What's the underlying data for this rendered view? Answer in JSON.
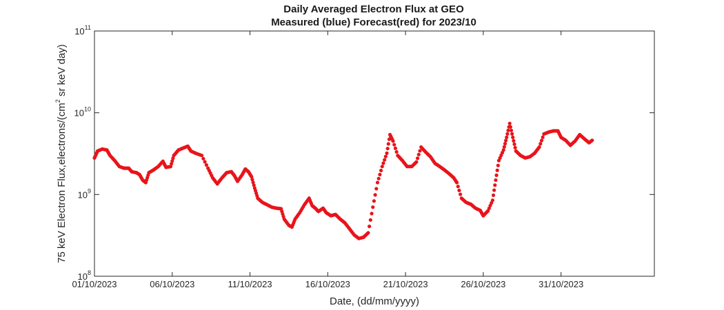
{
  "chart_data": {
    "type": "scatter",
    "title": "Daily Averaged Electron Flux at GEO",
    "subtitle": "Measured (blue) Forecast(red) for 2023/10",
    "xlabel": "Date, (dd/mm/yyyy)",
    "ylabel": "75 keV Electron Flux,electrons/(cm",
    "ylabel_exp": "2",
    "ylabel_tail": " sr keV day)",
    "x_unit": "days (1 = 01/10/2023)",
    "xlim": [
      1,
      37
    ],
    "ylim": [
      100000000,
      100000000000
    ],
    "y_scale": "log",
    "grid": false,
    "x_ticks": [
      {
        "value": 1,
        "label": "01/10/2023"
      },
      {
        "value": 6,
        "label": "06/10/2023"
      },
      {
        "value": 11,
        "label": "11/10/2023"
      },
      {
        "value": 16,
        "label": "16/10/2023"
      },
      {
        "value": 21,
        "label": "21/10/2023"
      },
      {
        "value": 26,
        "label": "26/10/2023"
      },
      {
        "value": 31,
        "label": "31/10/2023"
      }
    ],
    "y_ticks": [
      {
        "value": 100000000,
        "base": "10",
        "exp": "8"
      },
      {
        "value": 1000000000,
        "base": "10",
        "exp": "9"
      },
      {
        "value": 10000000000,
        "base": "10",
        "exp": "10"
      },
      {
        "value": 100000000000,
        "base": "10",
        "exp": "11"
      }
    ],
    "series": [
      {
        "color": "#e8141a",
        "marker": "dot",
        "points": [
          [
            1.0,
            2800000000.0
          ],
          [
            1.2,
            3400000000.0
          ],
          [
            1.5,
            3600000000.0
          ],
          [
            1.8,
            3500000000.0
          ],
          [
            2.0,
            3000000000.0
          ],
          [
            2.3,
            2600000000.0
          ],
          [
            2.6,
            2200000000.0
          ],
          [
            2.9,
            2100000000.0
          ],
          [
            3.2,
            2100000000.0
          ],
          [
            3.4,
            1900000000.0
          ],
          [
            3.7,
            1850000000.0
          ],
          [
            3.9,
            1750000000.0
          ],
          [
            4.1,
            1500000000.0
          ],
          [
            4.3,
            1400000000.0
          ],
          [
            4.5,
            1850000000.0
          ],
          [
            4.8,
            2000000000.0
          ],
          [
            5.1,
            2200000000.0
          ],
          [
            5.4,
            2550000000.0
          ],
          [
            5.6,
            2150000000.0
          ],
          [
            5.9,
            2200000000.0
          ],
          [
            6.1,
            3000000000.0
          ],
          [
            6.4,
            3500000000.0
          ],
          [
            6.7,
            3700000000.0
          ],
          [
            7.0,
            3900000000.0
          ],
          [
            7.2,
            3400000000.0
          ],
          [
            7.5,
            3200000000.0
          ],
          [
            7.9,
            3000000000.0
          ],
          [
            8.3,
            2100000000.0
          ],
          [
            8.6,
            1600000000.0
          ],
          [
            8.9,
            1350000000.0
          ],
          [
            9.2,
            1600000000.0
          ],
          [
            9.5,
            1850000000.0
          ],
          [
            9.8,
            1900000000.0
          ],
          [
            10.0,
            1700000000.0
          ],
          [
            10.2,
            1450000000.0
          ],
          [
            10.5,
            1750000000.0
          ],
          [
            10.7,
            2050000000.0
          ],
          [
            10.9,
            1900000000.0
          ],
          [
            11.1,
            1650000000.0
          ],
          [
            11.3,
            1200000000.0
          ],
          [
            11.5,
            900000000.0
          ],
          [
            11.8,
            800000000.0
          ],
          [
            12.1,
            750000000.0
          ],
          [
            12.4,
            700000000.0
          ],
          [
            12.7,
            680000000.0
          ],
          [
            13.0,
            670000000.0
          ],
          [
            13.2,
            500000000.0
          ],
          [
            13.5,
            420000000.0
          ],
          [
            13.7,
            400000000.0
          ],
          [
            13.9,
            500000000.0
          ],
          [
            14.2,
            600000000.0
          ],
          [
            14.5,
            750000000.0
          ],
          [
            14.8,
            900000000.0
          ],
          [
            15.0,
            730000000.0
          ],
          [
            15.2,
            680000000.0
          ],
          [
            15.4,
            620000000.0
          ],
          [
            15.7,
            680000000.0
          ],
          [
            15.9,
            600000000.0
          ],
          [
            16.2,
            550000000.0
          ],
          [
            16.5,
            570000000.0
          ],
          [
            16.8,
            500000000.0
          ],
          [
            17.1,
            450000000.0
          ],
          [
            17.4,
            380000000.0
          ],
          [
            17.7,
            320000000.0
          ],
          [
            18.0,
            290000000.0
          ],
          [
            18.3,
            300000000.0
          ],
          [
            18.6,
            340000000.0
          ],
          [
            18.9,
            700000000.0
          ],
          [
            19.2,
            1400000000.0
          ],
          [
            19.5,
            2200000000.0
          ],
          [
            19.8,
            3200000000.0
          ],
          [
            20.0,
            5400000000.0
          ],
          [
            20.2,
            4500000000.0
          ],
          [
            20.5,
            3000000000.0
          ],
          [
            20.8,
            2600000000.0
          ],
          [
            21.1,
            2200000000.0
          ],
          [
            21.4,
            2200000000.0
          ],
          [
            21.7,
            2500000000.0
          ],
          [
            22.0,
            3800000000.0
          ],
          [
            22.3,
            3300000000.0
          ],
          [
            22.6,
            2900000000.0
          ],
          [
            22.9,
            2400000000.0
          ],
          [
            23.2,
            2200000000.0
          ],
          [
            23.5,
            2000000000.0
          ],
          [
            23.8,
            1800000000.0
          ],
          [
            24.1,
            1600000000.0
          ],
          [
            24.3,
            1400000000.0
          ],
          [
            24.6,
            900000000.0
          ],
          [
            24.9,
            800000000.0
          ],
          [
            25.2,
            760000000.0
          ],
          [
            25.5,
            680000000.0
          ],
          [
            25.8,
            640000000.0
          ],
          [
            26.0,
            550000000.0
          ],
          [
            26.3,
            630000000.0
          ],
          [
            26.6,
            850000000.0
          ],
          [
            26.8,
            1500000000.0
          ],
          [
            27.0,
            2600000000.0
          ],
          [
            27.3,
            3500000000.0
          ],
          [
            27.5,
            5000000000.0
          ],
          [
            27.7,
            7400000000.0
          ],
          [
            27.9,
            5000000000.0
          ],
          [
            28.1,
            3400000000.0
          ],
          [
            28.4,
            3000000000.0
          ],
          [
            28.7,
            2800000000.0
          ],
          [
            29.0,
            2900000000.0
          ],
          [
            29.3,
            3200000000.0
          ],
          [
            29.6,
            3800000000.0
          ],
          [
            29.9,
            5500000000.0
          ],
          [
            30.2,
            5800000000.0
          ],
          [
            30.5,
            6000000000.0
          ],
          [
            30.8,
            6000000000.0
          ],
          [
            31.0,
            5000000000.0
          ],
          [
            31.3,
            4600000000.0
          ],
          [
            31.6,
            4000000000.0
          ],
          [
            31.9,
            4500000000.0
          ],
          [
            32.2,
            5400000000.0
          ],
          [
            32.5,
            4800000000.0
          ],
          [
            32.8,
            4300000000.0
          ],
          [
            33.0,
            4600000000.0
          ]
        ]
      }
    ]
  }
}
